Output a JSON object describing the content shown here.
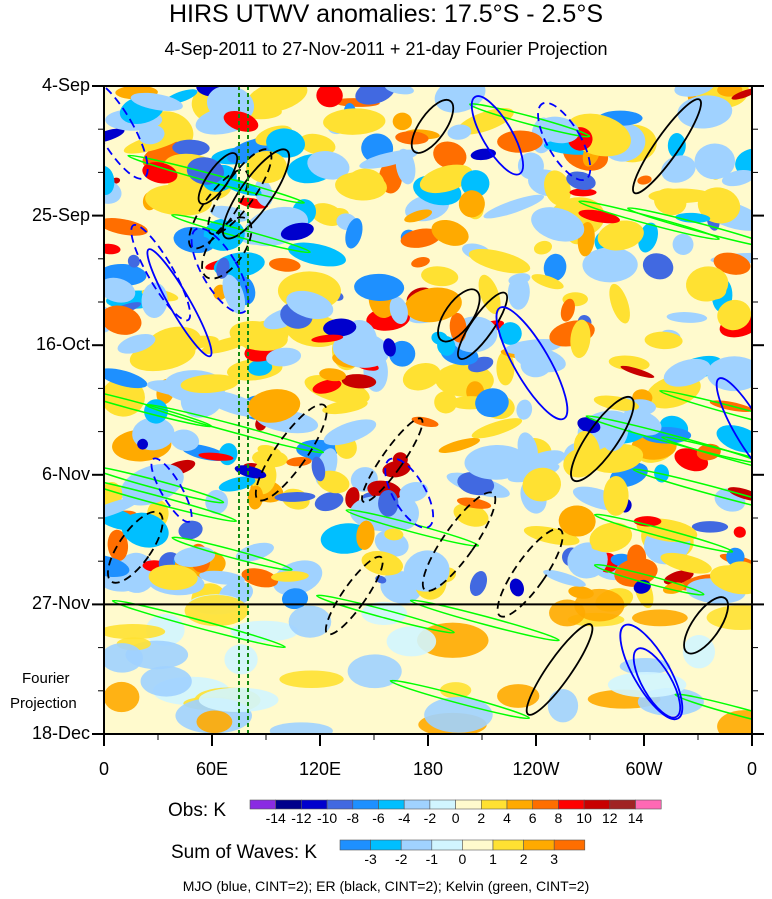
{
  "chart_data": {
    "type": "heatmap",
    "title": "HIRS UTWV anomalies: 17.5°S - 2.5°S",
    "subtitle": "4-Sep-2011 to 27-Nov-2011 + 21-day Fourier Projection",
    "x_ticks": [
      "0",
      "60E",
      "120E",
      "180",
      "120W",
      "60W",
      "0"
    ],
    "x_tick_values": [
      0,
      60,
      120,
      180,
      240,
      300,
      360
    ],
    "y_ticks": [
      "4-Sep",
      "25-Sep",
      "16-Oct",
      "6-Nov",
      "27-Nov",
      "18-Dec"
    ],
    "y_tick_days": [
      0,
      21,
      42,
      63,
      84,
      105
    ],
    "xlim": [
      0,
      360
    ],
    "ylim_days": [
      0,
      105
    ],
    "projection_start_day": 84,
    "projection_label": [
      "Fourier",
      "Projection"
    ],
    "obs_colorbar": {
      "label": "Obs: K",
      "levels": [
        "-14",
        "-12",
        "-10",
        "-8",
        "-6",
        "-4",
        "-2",
        "0",
        "2",
        "4",
        "6",
        "8",
        "10",
        "12",
        "14"
      ],
      "colors": [
        "#8a2be2",
        "#00008b",
        "#0000cd",
        "#4169e1",
        "#1e90ff",
        "#00bfff",
        "#a0d2ff",
        "#d1f5ff",
        "#fffacd",
        "#ffe132",
        "#ffaa00",
        "#ff6e00",
        "#ff0000",
        "#c80000",
        "#a02323",
        "#ff69b4"
      ]
    },
    "waves_colorbar": {
      "label": "Sum of Waves: K",
      "levels": [
        "-3",
        "-2",
        "-1",
        "0",
        "1",
        "2",
        "3"
      ],
      "colors": [
        "#1e90ff",
        "#00bfff",
        "#a0d2ff",
        "#d1f5ff",
        "#fffacd",
        "#ffe132",
        "#ffaa00",
        "#ff6e00"
      ]
    },
    "footer": "MJO (blue, CINT=2); ER (black, CINT=2); Kelvin (green, CINT=2)",
    "contour_colors": {
      "mjo": "#0000ff",
      "er": "#000000",
      "kelvin": "#00ff00"
    },
    "reference_lines_lon": [
      75,
      80
    ]
  }
}
